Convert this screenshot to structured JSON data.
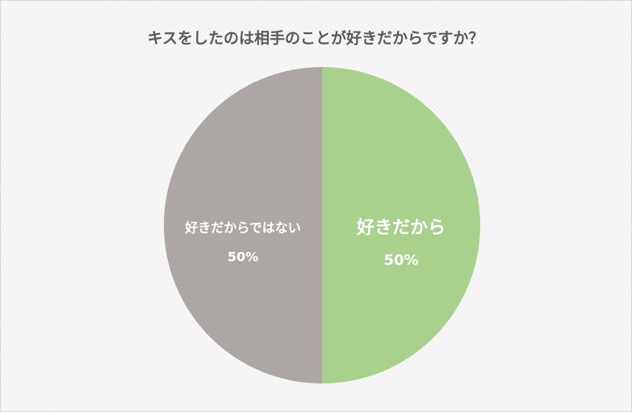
{
  "chart_data": {
    "type": "pie",
    "title": "キスをしたのは相手のことが好きだからですか？",
    "categories": [
      "好きだから",
      "好きだからではない"
    ],
    "values": [
      50,
      50
    ],
    "value_labels": [
      "50%",
      "50%"
    ],
    "colors": [
      "#a9d18e",
      "#aca6a4"
    ]
  }
}
